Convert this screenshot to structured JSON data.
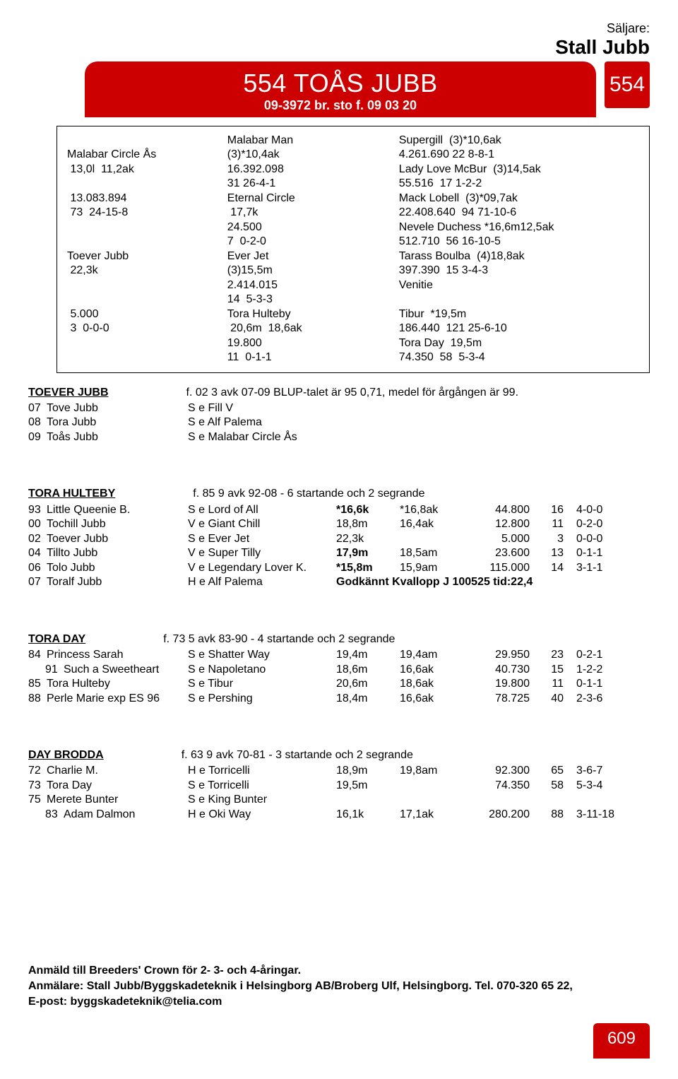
{
  "seller_label": "Säljare:",
  "seller_name": "Stall Jubb",
  "lot_number": "554",
  "horse_name": "554 TOÅS JUBB",
  "horse_sub": "09-3972 br. sto f. 09 03 20",
  "page_number": "609",
  "pedigree": {
    "col1": "\nMalabar Circle Ås\n 13,0l  11,2ak\n\n 13.083.894\n 73  24-15-8\n\n\nToever Jubb\n 22,3k\n\n\n 5.000\n 3  0-0-0\n",
    "col2": "Malabar Man\n(3)*10,4ak\n16.392.098\n31 26-4-1\nEternal Circle\n 17,7k\n24.500\n7  0-2-0\nEver Jet\n(3)15,5m\n2.414.015\n14  5-3-3\nTora Hulteby\n 20,6m  18,6ak\n19.800\n11  0-1-1",
    "col3": "Supergill  (3)*10,6ak\n4.261.690 22 8-8-1\nLady Love McBur  (3)14,5ak\n55.516  17 1-2-2\nMack Lobell  (3)*09,7ak\n22.408.640  94 71-10-6\nNevele Duchess *16,6m12,5ak\n512.710  56 16-10-5\nTarass Boulba  (4)18,8ak\n397.390  15 3-4-3\nVenitie\n\nTibur  *19,5m\n186.440  121 25-6-10\nTora Day  19,5m\n74.350  58  5-3-4"
  },
  "sec_toever": {
    "name": "TOEVER JUBB",
    "summary": "f. 02 3 avk 07-09 BLUP-talet är 95  0,71, medel för årgången är 99.",
    "rows": [
      {
        "yr": "07",
        "name": "Tove Jubb",
        "sire": "S e  Fill V"
      },
      {
        "yr": "08",
        "name": "Tora Jubb",
        "sire": "S e  Alf Palema"
      },
      {
        "yr": "09",
        "name": "Toås Jubb",
        "sire": "S e  Malabar Circle Ås"
      }
    ]
  },
  "sec_hulteby": {
    "name": "TORA HULTEBY",
    "summary": "f. 85 9 avk 92-08 - 6 startande och 2 segrande",
    "rows": [
      {
        "yr": "93",
        "name": "Little Queenie B.",
        "sire": "S e  Lord of All",
        "r1": "*16,6k",
        "r1b": true,
        "r2": "*16,8ak",
        "r2b": true,
        "m": "44.800",
        "s": "16",
        "w": "4-0-0"
      },
      {
        "yr": "00",
        "name": "Tochill Jubb",
        "sire": "V e  Giant Chill",
        "r1": "18,8m",
        "r2": "16,4ak",
        "m": "12.800",
        "s": "11",
        "w": "0-2-0"
      },
      {
        "yr": "02",
        "name": "Toever Jubb",
        "sire": "S e  Ever Jet",
        "r1": "22,3k",
        "r2": "",
        "m": "5.000",
        "s": "3",
        "w": "0-0-0"
      },
      {
        "yr": "04",
        "name": "Tillto Jubb",
        "sire": "V e  Super Tilly",
        "r1": "17,9m",
        "r1b": true,
        "r2": "18,5am",
        "m": "23.600",
        "s": "13",
        "w": "0-1-1"
      },
      {
        "yr": "06",
        "name": "Tolo Jubb",
        "sire": "V e  Legendary Lover K.",
        "r1": "*15,8m",
        "r1b": true,
        "r2": "15,9am",
        "r2b": true,
        "m": "115.000",
        "s": "14",
        "w": "3-1-1"
      },
      {
        "yr": "07",
        "name": "Toralf Jubb",
        "sire": "H e  Alf Palema",
        "r1": "",
        "note": "Godkännt Kvallopp J 100525 tid:22,4",
        "noteb": true
      }
    ]
  },
  "sec_day": {
    "name": "TORA DAY",
    "summary": "f. 73 5 avk 83-90 - 4 startande och 2 segrande",
    "rows": [
      {
        "yr": "84",
        "name": "Princess Sarah",
        "sire": "S e  Shatter Way",
        "r1": "19,4m",
        "r2": "19,4am",
        "m": "29.950",
        "s": "23",
        "w": "0-2-1"
      },
      {
        "indent": true,
        "yr": "91",
        "name": "Such a Sweetheart",
        "sire": "S e  Napoletano",
        "r1": "18,6m",
        "r2": "16,6ak",
        "r2b": true,
        "m": "40.730",
        "s": "15",
        "w": "1-2-2"
      },
      {
        "yr": "85",
        "name": "Tora Hulteby",
        "sire": "S e  Tibur",
        "r1": "20,6m",
        "r2": "18,6ak",
        "m": "19.800",
        "s": "11",
        "w": "0-1-1"
      },
      {
        "yr": "88",
        "name": "Perle Marie exp ES 96",
        "sire": "S e  Pershing",
        "r1": "18,4m",
        "r2": "16,6ak",
        "r2b": true,
        "m": "78.725",
        "s": "40",
        "w": "2-3-6"
      }
    ]
  },
  "sec_brodda": {
    "name": "DAY BRODDA",
    "summary": "f. 63 9 avk 70-81 - 3 startande och 2 segrande",
    "rows": [
      {
        "yr": "72",
        "name": "Charlie M.",
        "sire": "H e  Torricelli",
        "r1": "18,9m",
        "r2": "19,8am",
        "m": "92.300",
        "s": "65",
        "w": "3-6-7"
      },
      {
        "yr": "73",
        "name": "Tora Day",
        "sire": "S e  Torricelli",
        "r1": "19,5m",
        "r2": "",
        "m": "74.350",
        "s": "58",
        "w": "5-3-4"
      },
      {
        "yr": "75",
        "name": "Merete Bunter",
        "sire": "S e  King Bunter"
      },
      {
        "indent": true,
        "yr": "83",
        "name": "Adam Dalmon",
        "sire": "H e  Oki Way",
        "r1": "16,1k",
        "r2": "17,1ak",
        "m": "280.200",
        "s": "88",
        "w": "3-11-18"
      }
    ]
  },
  "footer_l1": "Anmäld till Breeders' Crown för 2- 3- och 4-åringar.",
  "footer_l2a": "Anmälare: Stall Jubb/Byggskadeteknik i Helsingborg AB/Broberg Ulf, Helsingborg. Tel. 070-320 65 22,",
  "footer_l2b": "E-post: byggskadeteknik@telia.com"
}
